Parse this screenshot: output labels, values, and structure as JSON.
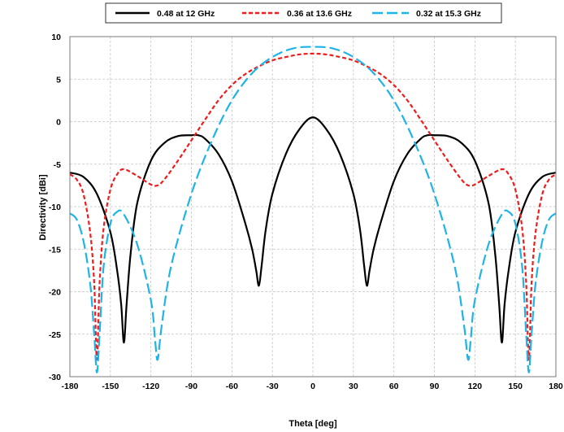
{
  "chart_data": {
    "type": "line",
    "title": "",
    "xlabel": "Theta [deg]",
    "ylabel": "Directivity [dBi]",
    "xlim": [
      -180,
      180
    ],
    "ylim": [
      -30,
      10
    ],
    "xticks": [
      -180,
      -150,
      -120,
      -90,
      -60,
      -30,
      0,
      30,
      60,
      90,
      120,
      150,
      180
    ],
    "yticks": [
      -30,
      -25,
      -20,
      -15,
      -10,
      -5,
      0,
      5,
      10
    ],
    "grid": true,
    "legend_position": "top",
    "series": [
      {
        "name": "0.48 at 12 GHz",
        "color": "#000000",
        "dash": "solid",
        "x": [
          -180,
          -170,
          -160,
          -150,
          -145,
          -142,
          -140,
          -138,
          -135,
          -130,
          -120,
          -110,
          -100,
          -90,
          -85,
          -80,
          -70,
          -60,
          -50,
          -45,
          -42,
          -40,
          -38,
          -35,
          -30,
          -20,
          -10,
          0,
          10,
          20,
          30,
          35,
          38,
          40,
          42,
          45,
          50,
          60,
          70,
          80,
          85,
          90,
          100,
          110,
          120,
          130,
          135,
          138,
          140,
          142,
          145,
          150,
          160,
          170,
          180
        ],
        "y": [
          -6,
          -6.5,
          -8.5,
          -13,
          -17.5,
          -21.5,
          -26,
          -21.5,
          -15.5,
          -9.5,
          -4.6,
          -2.5,
          -1.7,
          -1.6,
          -1.6,
          -2,
          -3.8,
          -7,
          -12,
          -15,
          -17.5,
          -19.3,
          -17,
          -12.8,
          -8.5,
          -3.8,
          -0.9,
          0.5,
          -0.9,
          -3.8,
          -8.5,
          -12.8,
          -17,
          -19.3,
          -17.5,
          -15,
          -12,
          -7,
          -3.8,
          -2,
          -1.6,
          -1.6,
          -1.7,
          -2.5,
          -4.6,
          -9.5,
          -15.5,
          -21.5,
          -26,
          -21.5,
          -17.5,
          -13,
          -8.5,
          -6.5,
          -6
        ]
      },
      {
        "name": "0.36 at 13.6 GHz",
        "color": "#ee1c1c",
        "dash": "dashed",
        "x": [
          -180,
          -175,
          -170,
          -165,
          -162,
          -160,
          -158,
          -155,
          -150,
          -145,
          -140,
          -130,
          -120,
          -115,
          -110,
          -100,
          -90,
          -80,
          -70,
          -60,
          -50,
          -40,
          -30,
          -20,
          -10,
          0,
          10,
          20,
          30,
          40,
          50,
          60,
          70,
          80,
          90,
          100,
          110,
          115,
          120,
          130,
          140,
          145,
          150,
          155,
          158,
          160,
          162,
          165,
          170,
          175,
          180
        ],
        "y": [
          -6.2,
          -6.8,
          -8.5,
          -13,
          -19,
          -28,
          -19,
          -12.5,
          -8,
          -6.2,
          -5.6,
          -6.4,
          -7.4,
          -7.5,
          -6.8,
          -4.6,
          -2.2,
          0.2,
          2.5,
          4.3,
          5.6,
          6.5,
          7.2,
          7.6,
          7.9,
          8,
          7.9,
          7.6,
          7.2,
          6.5,
          5.6,
          4.3,
          2.5,
          0.2,
          -2.2,
          -4.6,
          -6.8,
          -7.5,
          -7.4,
          -6.4,
          -5.6,
          -6.2,
          -8,
          -12.5,
          -19,
          -28,
          -19,
          -13,
          -8.5,
          -6.8,
          -6.2
        ]
      },
      {
        "name": "0.32 at 15.3 GHz",
        "color": "#1fb3e6",
        "dash": "longdash",
        "x": [
          -180,
          -175,
          -170,
          -165,
          -162,
          -160,
          -158,
          -155,
          -150,
          -145,
          -140,
          -130,
          -120,
          -117,
          -115,
          -112,
          -105,
          -90,
          -75,
          -60,
          -45,
          -30,
          -15,
          0,
          15,
          30,
          45,
          60,
          75,
          90,
          105,
          112,
          115,
          117,
          120,
          130,
          140,
          145,
          150,
          155,
          158,
          160,
          162,
          165,
          170,
          175,
          180
        ],
        "y": [
          -10.8,
          -11.5,
          -14,
          -19,
          -25,
          -29.5,
          -25,
          -17,
          -12,
          -10.6,
          -10.9,
          -14.5,
          -21,
          -25.5,
          -28,
          -24,
          -17,
          -8.5,
          -2.3,
          2.5,
          5.7,
          7.6,
          8.6,
          8.8,
          8.6,
          7.6,
          5.7,
          2.5,
          -2.3,
          -8.5,
          -17,
          -24,
          -28,
          -25.5,
          -21,
          -14.5,
          -10.9,
          -10.6,
          -12,
          -17,
          -25,
          -29.5,
          -25,
          -19,
          -14,
          -11.5,
          -10.8
        ]
      }
    ]
  }
}
